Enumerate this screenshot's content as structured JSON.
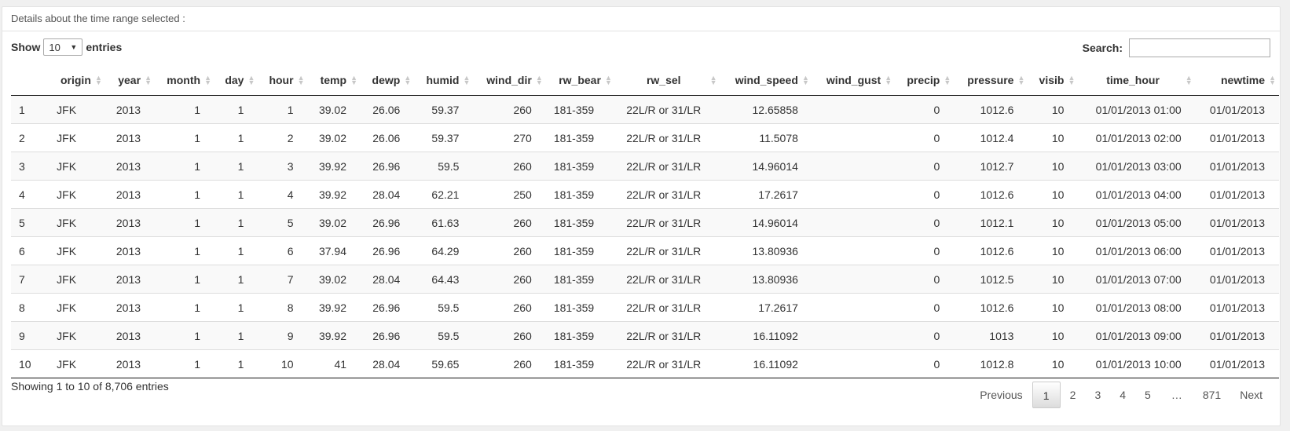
{
  "header": {
    "title": "Details about the time range selected :"
  },
  "length": {
    "show_label": "Show",
    "value": "10",
    "entries_label": "entries"
  },
  "search": {
    "label": "Search:",
    "value": ""
  },
  "table": {
    "columns": [
      "",
      "origin",
      "year",
      "month",
      "day",
      "hour",
      "temp",
      "dewp",
      "humid",
      "wind_dir",
      "rw_bear",
      "rw_sel",
      "wind_speed",
      "wind_gust",
      "precip",
      "pressure",
      "visib",
      "time_hour",
      "newtime"
    ],
    "rows": [
      [
        "1",
        "JFK",
        "2013",
        "1",
        "1",
        "1",
        "39.02",
        "26.06",
        "59.37",
        "260",
        "181-359",
        "22L/R or 31/LR",
        "12.65858",
        "",
        "0",
        "1012.6",
        "10",
        "01/01/2013 01:00",
        "01/01/2013"
      ],
      [
        "2",
        "JFK",
        "2013",
        "1",
        "1",
        "2",
        "39.02",
        "26.06",
        "59.37",
        "270",
        "181-359",
        "22L/R or 31/LR",
        "11.5078",
        "",
        "0",
        "1012.4",
        "10",
        "01/01/2013 02:00",
        "01/01/2013"
      ],
      [
        "3",
        "JFK",
        "2013",
        "1",
        "1",
        "3",
        "39.92",
        "26.96",
        "59.5",
        "260",
        "181-359",
        "22L/R or 31/LR",
        "14.96014",
        "",
        "0",
        "1012.7",
        "10",
        "01/01/2013 03:00",
        "01/01/2013"
      ],
      [
        "4",
        "JFK",
        "2013",
        "1",
        "1",
        "4",
        "39.92",
        "28.04",
        "62.21",
        "250",
        "181-359",
        "22L/R or 31/LR",
        "17.2617",
        "",
        "0",
        "1012.6",
        "10",
        "01/01/2013 04:00",
        "01/01/2013"
      ],
      [
        "5",
        "JFK",
        "2013",
        "1",
        "1",
        "5",
        "39.02",
        "26.96",
        "61.63",
        "260",
        "181-359",
        "22L/R or 31/LR",
        "14.96014",
        "",
        "0",
        "1012.1",
        "10",
        "01/01/2013 05:00",
        "01/01/2013"
      ],
      [
        "6",
        "JFK",
        "2013",
        "1",
        "1",
        "6",
        "37.94",
        "26.96",
        "64.29",
        "260",
        "181-359",
        "22L/R or 31/LR",
        "13.80936",
        "",
        "0",
        "1012.6",
        "10",
        "01/01/2013 06:00",
        "01/01/2013"
      ],
      [
        "7",
        "JFK",
        "2013",
        "1",
        "1",
        "7",
        "39.02",
        "28.04",
        "64.43",
        "260",
        "181-359",
        "22L/R or 31/LR",
        "13.80936",
        "",
        "0",
        "1012.5",
        "10",
        "01/01/2013 07:00",
        "01/01/2013"
      ],
      [
        "8",
        "JFK",
        "2013",
        "1",
        "1",
        "8",
        "39.92",
        "26.96",
        "59.5",
        "260",
        "181-359",
        "22L/R or 31/LR",
        "17.2617",
        "",
        "0",
        "1012.6",
        "10",
        "01/01/2013 08:00",
        "01/01/2013"
      ],
      [
        "9",
        "JFK",
        "2013",
        "1",
        "1",
        "9",
        "39.92",
        "26.96",
        "59.5",
        "260",
        "181-359",
        "22L/R or 31/LR",
        "16.11092",
        "",
        "0",
        "1013",
        "10",
        "01/01/2013 09:00",
        "01/01/2013"
      ],
      [
        "10",
        "JFK",
        "2013",
        "1",
        "1",
        "10",
        "41",
        "28.04",
        "59.65",
        "260",
        "181-359",
        "22L/R or 31/LR",
        "16.11092",
        "",
        "0",
        "1012.8",
        "10",
        "01/01/2013 10:00",
        "01/01/2013"
      ]
    ]
  },
  "footer": {
    "info": "Showing 1 to 10 of 8,706 entries"
  },
  "pagination": {
    "previous": "Previous",
    "pages": [
      "1",
      "2",
      "3",
      "4",
      "5"
    ],
    "ellipsis": "…",
    "last": "871",
    "next": "Next"
  }
}
